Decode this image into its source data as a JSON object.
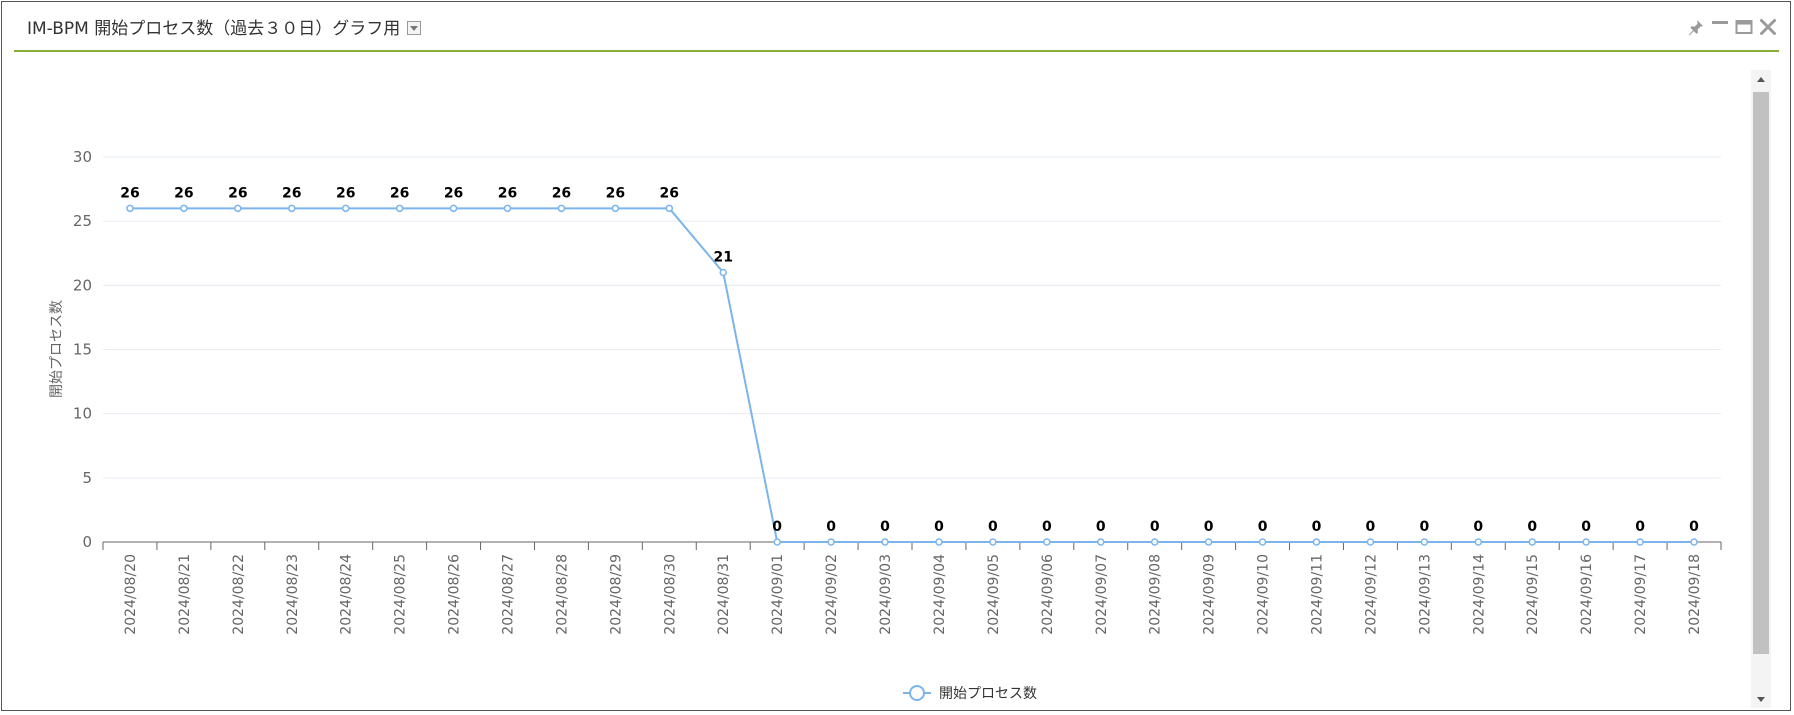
{
  "portlet": {
    "title": "IM-BPM 開始プロセス数（過去３０日）グラフ用"
  },
  "chart_data": {
    "type": "line",
    "title": "",
    "xlabel": "",
    "ylabel": "開始プロセス数",
    "ylim": [
      0,
      30
    ],
    "yticks": [
      "0",
      "5",
      "10",
      "15",
      "20",
      "25",
      "30"
    ],
    "grid": true,
    "legend_position": "bottom-center",
    "categories": [
      "2024/08/20",
      "2024/08/21",
      "2024/08/22",
      "2024/08/23",
      "2024/08/24",
      "2024/08/25",
      "2024/08/26",
      "2024/08/27",
      "2024/08/28",
      "2024/08/29",
      "2024/08/30",
      "2024/08/31",
      "2024/09/01",
      "2024/09/02",
      "2024/09/03",
      "2024/09/04",
      "2024/09/05",
      "2024/09/06",
      "2024/09/07",
      "2024/09/08",
      "2024/09/09",
      "2024/09/10",
      "2024/09/11",
      "2024/09/12",
      "2024/09/13",
      "2024/09/14",
      "2024/09/15",
      "2024/09/16",
      "2024/09/17",
      "2024/09/18"
    ],
    "series": [
      {
        "name": "開始プロセス数",
        "color": "#7cb5ec",
        "values": [
          26,
          26,
          26,
          26,
          26,
          26,
          26,
          26,
          26,
          26,
          26,
          21,
          0,
          0,
          0,
          0,
          0,
          0,
          0,
          0,
          0,
          0,
          0,
          0,
          0,
          0,
          0,
          0,
          0,
          0
        ]
      }
    ]
  },
  "colors": {
    "header_rule": "#8aab3c",
    "grid": "#e6ebf5",
    "axis": "#666666",
    "tick_label": "#666666"
  }
}
